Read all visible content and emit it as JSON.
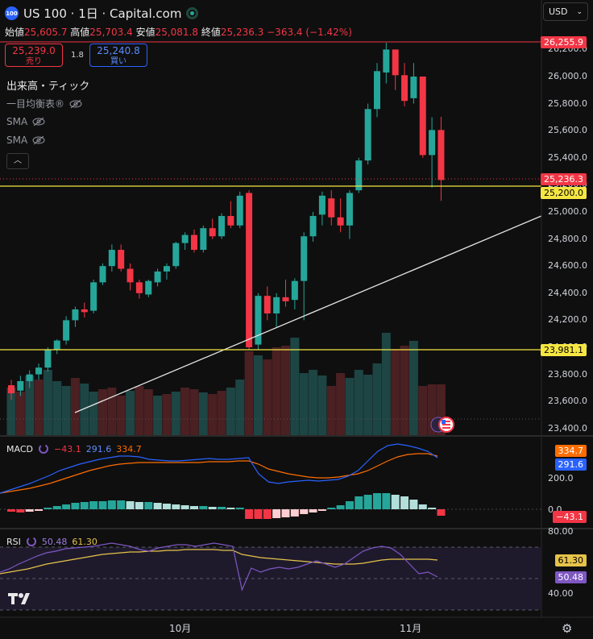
{
  "header": {
    "logo_text": "100",
    "title": "US 100 · 1日 · Capital.com",
    "currency": "USD"
  },
  "ohlc": {
    "open_label": "始値",
    "open": "25,605.7",
    "high_label": "高値",
    "high": "25,703.4",
    "low_label": "安値",
    "low": "25,081.8",
    "close_label": "終値",
    "close": "25,236.3",
    "change": "−363.4 (−1.42%)"
  },
  "trade": {
    "sell_price": "25,239.0",
    "sell_label": "売り",
    "spread": "1.8",
    "buy_price": "25,240.8",
    "buy_label": "買い"
  },
  "indicators": {
    "volume": "出来高・ティック",
    "ichimoku": "一目均衡表®",
    "sma1": "SMA",
    "sma2": "SMA"
  },
  "price_axis": {
    "ticks": [
      "26,200.0",
      "26,000.0",
      "25,800.0",
      "25,600.0",
      "25,400.0",
      "25,200.0",
      "25,000.0",
      "24,800.0",
      "24,600.0",
      "24,400.0",
      "24,200.0",
      "24,000.0",
      "23,800.0",
      "23,600.0",
      "23,400.0"
    ],
    "labels": {
      "high": "26,255.9",
      "last": "25,236.3",
      "line1": "25,200.0",
      "line2": "23,981.1"
    }
  },
  "macd": {
    "name": "MACD",
    "hist": "−43.1",
    "macd": "291.6",
    "signal": "334.7",
    "axis_label_signal": "334.7",
    "axis_label_macd": "291.6",
    "axis_label_hist": "−43.1",
    "ticks": [
      "200.0",
      "0.0"
    ]
  },
  "rsi": {
    "name": "RSI",
    "rsi": "50.48",
    "ma": "61.30",
    "axis_label_ma": "61.30",
    "axis_label_rsi": "50.48",
    "ticks": [
      "80.00",
      "40.00"
    ]
  },
  "time_axis": [
    "10月",
    "11月"
  ],
  "colors": {
    "up": "#26a69a",
    "down": "#f23645",
    "background": "#0f0f0f",
    "macd_line": "#2962ff",
    "signal_line": "#ff6d00",
    "rsi_line": "#7e57c2",
    "rsi_ma": "#e6c34a",
    "hline": "#f5e642"
  },
  "chart_data": {
    "type": "candlestick",
    "interval": "1D",
    "symbol": "US 100",
    "ohlc": [
      [
        23720,
        23760,
        23610,
        23660
      ],
      [
        23680,
        23790,
        23640,
        23750
      ],
      [
        23750,
        23830,
        23700,
        23800
      ],
      [
        23800,
        23880,
        23760,
        23850
      ],
      [
        23850,
        24000,
        23820,
        23980
      ],
      [
        23980,
        24060,
        23950,
        24050
      ],
      [
        24050,
        24230,
        24020,
        24200
      ],
      [
        24200,
        24300,
        24150,
        24280
      ],
      [
        24280,
        24330,
        24220,
        24260
      ],
      [
        24270,
        24500,
        24250,
        24480
      ],
      [
        24480,
        24620,
        24460,
        24600
      ],
      [
        24600,
        24760,
        24560,
        24720
      ],
      [
        24720,
        24760,
        24560,
        24580
      ],
      [
        24580,
        24620,
        24420,
        24480
      ],
      [
        24480,
        24500,
        24360,
        24400
      ],
      [
        24390,
        24500,
        24370,
        24490
      ],
      [
        24480,
        24580,
        24450,
        24560
      ],
      [
        24560,
        24620,
        24500,
        24600
      ],
      [
        24600,
        24780,
        24580,
        24770
      ],
      [
        24770,
        24850,
        24720,
        24830
      ],
      [
        24830,
        24870,
        24700,
        24720
      ],
      [
        24720,
        24900,
        24700,
        24880
      ],
      [
        24880,
        24950,
        24800,
        24820
      ],
      [
        24820,
        24990,
        24800,
        24970
      ],
      [
        24970,
        25080,
        24880,
        24900
      ],
      [
        24900,
        25150,
        24880,
        25120
      ],
      [
        25140,
        25160,
        23980,
        24000
      ],
      [
        24020,
        24400,
        23980,
        24380
      ],
      [
        24380,
        24450,
        24200,
        24250
      ],
      [
        24250,
        24400,
        24150,
        24370
      ],
      [
        24370,
        24500,
        24300,
        24340
      ],
      [
        24350,
        24510,
        24280,
        24490
      ],
      [
        24490,
        24850,
        24200,
        24820
      ],
      [
        24820,
        25000,
        24780,
        24970
      ],
      [
        24980,
        25150,
        24900,
        25120
      ],
      [
        25100,
        25160,
        24900,
        24960
      ],
      [
        24960,
        25100,
        24850,
        24900
      ],
      [
        24900,
        25160,
        24800,
        25140
      ],
      [
        25160,
        25400,
        25140,
        25380
      ],
      [
        25380,
        25800,
        25350,
        25760
      ],
      [
        25760,
        26100,
        25700,
        26040
      ],
      [
        26030,
        26250,
        25950,
        26200
      ],
      [
        26200,
        26180,
        25900,
        26010
      ],
      [
        26010,
        26100,
        25780,
        25820
      ],
      [
        25840,
        26100,
        25800,
        26000
      ],
      [
        26000,
        26000,
        25400,
        25420
      ],
      [
        25420,
        25700,
        25180,
        25605
      ],
      [
        25605,
        25703,
        25082,
        25236
      ]
    ],
    "volume_direction": [
      "up",
      "down",
      "up",
      "down",
      "up",
      "up",
      "up",
      "down",
      "up",
      "up",
      "down",
      "down",
      "down",
      "up",
      "down",
      "down",
      "up",
      "down",
      "up",
      "down",
      "down",
      "up",
      "down",
      "down",
      "up",
      "up",
      "down",
      "up",
      "down",
      "down",
      "down",
      "up",
      "up",
      "up",
      "up",
      "down",
      "down",
      "up",
      "up",
      "up",
      "up",
      "up",
      "down",
      "down",
      "up",
      "down",
      "down",
      "down"
    ],
    "horizontal_lines": [
      25200.0,
      23981.1
    ],
    "trendline": "rising diagonal from bottom-left to right edge",
    "macd": {
      "macd": 291.6,
      "signal": 334.7,
      "histogram": -43.1
    },
    "rsi": {
      "rsi": 50.48,
      "rsi_ma": 61.3,
      "levels": [
        80,
        40
      ]
    },
    "x_ticks": [
      "10月",
      "11月"
    ]
  }
}
